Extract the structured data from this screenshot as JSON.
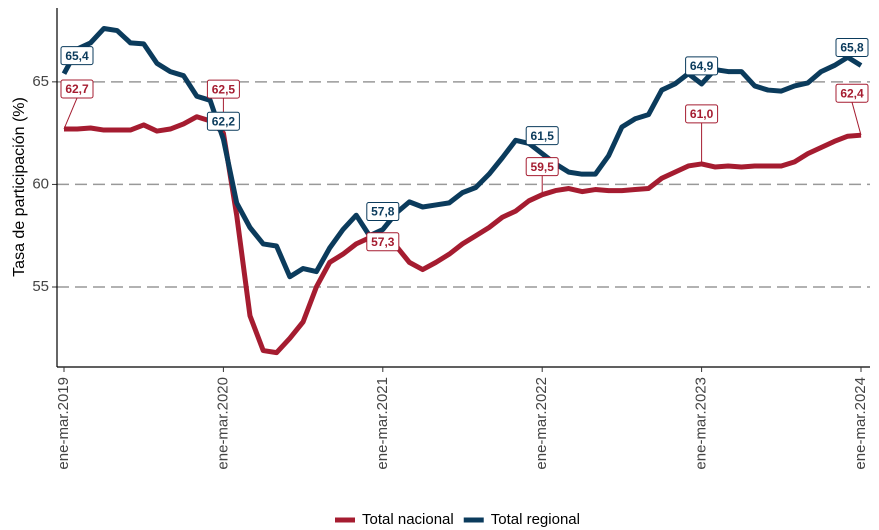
{
  "chart_data": {
    "type": "line",
    "y_label": "Tasa de participación (%)",
    "categories": [
      "ene-mar.2019",
      null,
      null,
      null,
      null,
      null,
      null,
      null,
      null,
      null,
      null,
      null,
      "ene-mar.2020",
      null,
      null,
      null,
      null,
      null,
      null,
      null,
      null,
      null,
      null,
      null,
      "ene-mar.2021",
      null,
      null,
      null,
      null,
      null,
      null,
      null,
      null,
      null,
      null,
      null,
      "ene-mar.2022",
      null,
      null,
      null,
      null,
      null,
      null,
      null,
      null,
      null,
      null,
      null,
      "ene-mar.2023",
      null,
      null,
      null,
      null,
      null,
      null,
      null,
      null,
      null,
      null,
      null,
      "ene-mar.2024"
    ],
    "ylim": [
      51.1,
      68.6
    ],
    "yticks": [
      55,
      60,
      65
    ],
    "grid": true,
    "legend": "bottom",
    "series": [
      {
        "name": "Total nacional",
        "color": "#a51c30",
        "values": [
          62.7,
          62.7,
          62.75,
          62.65,
          62.65,
          62.65,
          62.9,
          62.6,
          62.7,
          62.95,
          63.3,
          63.1,
          62.5,
          58.5,
          53.6,
          51.9,
          51.8,
          52.5,
          53.3,
          55.0,
          56.2,
          56.6,
          57.1,
          57.4,
          57.3,
          57.0,
          56.2,
          55.85,
          56.2,
          56.6,
          57.1,
          57.5,
          57.9,
          58.4,
          58.7,
          59.2,
          59.5,
          59.7,
          59.8,
          59.65,
          59.75,
          59.7,
          59.7,
          59.75,
          59.8,
          60.3,
          60.6,
          60.9,
          61.0,
          60.85,
          60.9,
          60.85,
          60.9,
          60.9,
          60.9,
          61.1,
          61.5,
          61.8,
          62.1,
          62.35,
          62.4
        ],
        "value_labels": [
          "62,7",
          null,
          null,
          null,
          null,
          null,
          null,
          null,
          null,
          null,
          null,
          null,
          "62,5",
          null,
          null,
          null,
          null,
          null,
          null,
          null,
          null,
          null,
          null,
          null,
          "57,3",
          null,
          null,
          null,
          null,
          null,
          null,
          null,
          null,
          null,
          null,
          null,
          "59,5",
          null,
          null,
          null,
          null,
          null,
          null,
          null,
          null,
          null,
          null,
          null,
          "61,0",
          null,
          null,
          null,
          null,
          null,
          null,
          null,
          null,
          null,
          null,
          null,
          "62,4"
        ]
      },
      {
        "name": "Total regional",
        "color": "#0b3b5c",
        "values": [
          65.4,
          66.6,
          66.9,
          67.6,
          67.5,
          66.9,
          66.85,
          65.9,
          65.5,
          65.3,
          64.3,
          64.1,
          62.2,
          59.1,
          57.9,
          57.1,
          57.0,
          55.5,
          55.9,
          55.75,
          56.9,
          57.8,
          58.5,
          57.5,
          57.8,
          58.6,
          59.15,
          58.9,
          59.0,
          59.1,
          59.6,
          59.85,
          60.5,
          61.3,
          62.15,
          62.0,
          61.5,
          61.0,
          60.6,
          60.5,
          60.5,
          61.4,
          62.8,
          63.2,
          63.4,
          64.6,
          64.9,
          65.4,
          64.9,
          65.6,
          65.5,
          65.5,
          64.8,
          64.6,
          64.55,
          64.8,
          64.95,
          65.5,
          65.8,
          66.2,
          65.8
        ],
        "value_labels": [
          "65,4",
          null,
          null,
          null,
          null,
          null,
          null,
          null,
          null,
          null,
          null,
          null,
          "62,2",
          null,
          null,
          null,
          null,
          null,
          null,
          null,
          null,
          null,
          null,
          null,
          "57,8",
          null,
          null,
          null,
          null,
          null,
          null,
          null,
          null,
          null,
          null,
          null,
          "61,5",
          null,
          null,
          null,
          null,
          null,
          null,
          null,
          null,
          null,
          null,
          null,
          "64,9",
          null,
          null,
          null,
          null,
          null,
          null,
          null,
          null,
          null,
          null,
          null,
          "65,8"
        ]
      }
    ]
  }
}
